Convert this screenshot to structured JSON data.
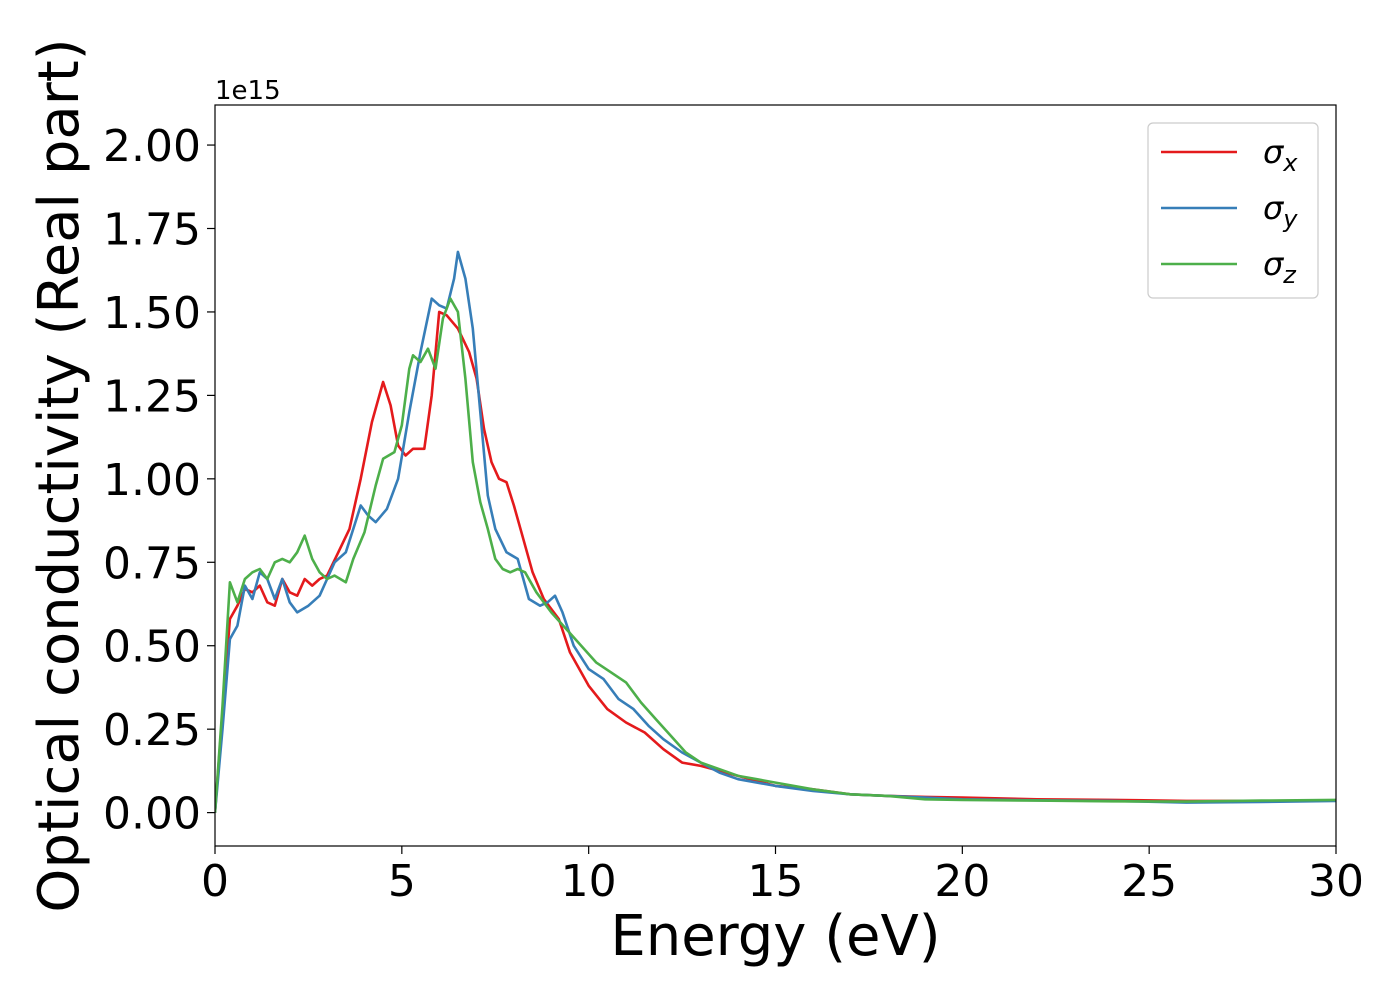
{
  "chart_data": {
    "type": "line",
    "xlabel": "Energy (eV)",
    "ylabel": "Optical conductivity (Real part)",
    "y_offset_text": "1e15",
    "xlim": [
      0,
      30
    ],
    "ylim": [
      -0.1,
      2.12
    ],
    "x_ticks": [
      0,
      5,
      10,
      15,
      20,
      25,
      30
    ],
    "x_tick_labels": [
      "0",
      "5",
      "10",
      "15",
      "20",
      "25",
      "30"
    ],
    "y_ticks": [
      0.0,
      0.25,
      0.5,
      0.75,
      1.0,
      1.25,
      1.5,
      1.75,
      2.0
    ],
    "y_tick_labels": [
      "0.00",
      "0.25",
      "0.50",
      "0.75",
      "1.00",
      "1.25",
      "1.50",
      "1.75",
      "2.00"
    ],
    "legend_position": "top-right",
    "grid": false,
    "series": [
      {
        "name": "σ",
        "subscript": "x",
        "color": "#e41a1c",
        "points": [
          [
            0,
            0
          ],
          [
            0.2,
            0.3
          ],
          [
            0.4,
            0.58
          ],
          [
            0.6,
            0.62
          ],
          [
            0.8,
            0.67
          ],
          [
            1.0,
            0.66
          ],
          [
            1.2,
            0.68
          ],
          [
            1.4,
            0.63
          ],
          [
            1.6,
            0.62
          ],
          [
            1.8,
            0.7
          ],
          [
            2.0,
            0.66
          ],
          [
            2.2,
            0.65
          ],
          [
            2.4,
            0.7
          ],
          [
            2.6,
            0.68
          ],
          [
            2.8,
            0.7
          ],
          [
            3.0,
            0.71
          ],
          [
            3.3,
            0.78
          ],
          [
            3.6,
            0.85
          ],
          [
            3.9,
            1.0
          ],
          [
            4.2,
            1.17
          ],
          [
            4.5,
            1.29
          ],
          [
            4.7,
            1.22
          ],
          [
            4.9,
            1.1
          ],
          [
            5.1,
            1.07
          ],
          [
            5.3,
            1.09
          ],
          [
            5.6,
            1.09
          ],
          [
            5.8,
            1.25
          ],
          [
            6.0,
            1.5
          ],
          [
            6.2,
            1.49
          ],
          [
            6.5,
            1.45
          ],
          [
            6.8,
            1.38
          ],
          [
            7.0,
            1.3
          ],
          [
            7.2,
            1.15
          ],
          [
            7.4,
            1.05
          ],
          [
            7.6,
            1.0
          ],
          [
            7.8,
            0.99
          ],
          [
            8.0,
            0.92
          ],
          [
            8.2,
            0.84
          ],
          [
            8.5,
            0.72
          ],
          [
            8.8,
            0.64
          ],
          [
            9.2,
            0.58
          ],
          [
            9.5,
            0.48
          ],
          [
            10.0,
            0.38
          ],
          [
            10.5,
            0.31
          ],
          [
            11.0,
            0.27
          ],
          [
            11.5,
            0.24
          ],
          [
            12.0,
            0.19
          ],
          [
            12.5,
            0.15
          ],
          [
            13.0,
            0.14
          ],
          [
            14.0,
            0.11
          ],
          [
            15.0,
            0.08
          ],
          [
            16.0,
            0.07
          ],
          [
            17.0,
            0.055
          ],
          [
            18.0,
            0.05
          ],
          [
            19.0,
            0.047
          ],
          [
            20.0,
            0.045
          ],
          [
            22.0,
            0.04
          ],
          [
            24.0,
            0.038
          ],
          [
            26.0,
            0.035
          ],
          [
            28.0,
            0.035
          ],
          [
            30.0,
            0.036
          ]
        ]
      },
      {
        "name": "σ",
        "subscript": "y",
        "color": "#377eb8",
        "points": [
          [
            0,
            0
          ],
          [
            0.2,
            0.25
          ],
          [
            0.4,
            0.52
          ],
          [
            0.6,
            0.56
          ],
          [
            0.8,
            0.68
          ],
          [
            1.0,
            0.64
          ],
          [
            1.2,
            0.72
          ],
          [
            1.4,
            0.7
          ],
          [
            1.6,
            0.64
          ],
          [
            1.8,
            0.7
          ],
          [
            2.0,
            0.63
          ],
          [
            2.2,
            0.6
          ],
          [
            2.5,
            0.62
          ],
          [
            2.8,
            0.65
          ],
          [
            3.0,
            0.7
          ],
          [
            3.2,
            0.75
          ],
          [
            3.5,
            0.78
          ],
          [
            3.7,
            0.85
          ],
          [
            3.9,
            0.92
          ],
          [
            4.1,
            0.89
          ],
          [
            4.3,
            0.87
          ],
          [
            4.6,
            0.91
          ],
          [
            4.9,
            1.0
          ],
          [
            5.2,
            1.2
          ],
          [
            5.5,
            1.38
          ],
          [
            5.8,
            1.54
          ],
          [
            6.0,
            1.52
          ],
          [
            6.2,
            1.51
          ],
          [
            6.4,
            1.6
          ],
          [
            6.5,
            1.68
          ],
          [
            6.7,
            1.6
          ],
          [
            6.9,
            1.45
          ],
          [
            7.1,
            1.2
          ],
          [
            7.3,
            0.95
          ],
          [
            7.5,
            0.85
          ],
          [
            7.8,
            0.78
          ],
          [
            8.1,
            0.76
          ],
          [
            8.4,
            0.64
          ],
          [
            8.7,
            0.62
          ],
          [
            8.9,
            0.63
          ],
          [
            9.1,
            0.65
          ],
          [
            9.3,
            0.6
          ],
          [
            9.6,
            0.5
          ],
          [
            10.0,
            0.43
          ],
          [
            10.4,
            0.4
          ],
          [
            10.8,
            0.34
          ],
          [
            11.2,
            0.31
          ],
          [
            11.6,
            0.26
          ],
          [
            12.0,
            0.22
          ],
          [
            12.5,
            0.18
          ],
          [
            13.0,
            0.15
          ],
          [
            13.5,
            0.12
          ],
          [
            14.0,
            0.1
          ],
          [
            15.0,
            0.08
          ],
          [
            16.0,
            0.065
          ],
          [
            17.0,
            0.055
          ],
          [
            18.0,
            0.05
          ],
          [
            19.0,
            0.045
          ],
          [
            20.0,
            0.04
          ],
          [
            22.0,
            0.037
          ],
          [
            24.0,
            0.035
          ],
          [
            26.0,
            0.03
          ],
          [
            28.0,
            0.032
          ],
          [
            30.0,
            0.035
          ]
        ]
      },
      {
        "name": "σ",
        "subscript": "z",
        "color": "#4daf4a",
        "points": [
          [
            0,
            0
          ],
          [
            0.2,
            0.32
          ],
          [
            0.4,
            0.69
          ],
          [
            0.6,
            0.63
          ],
          [
            0.8,
            0.7
          ],
          [
            1.0,
            0.72
          ],
          [
            1.2,
            0.73
          ],
          [
            1.4,
            0.7
          ],
          [
            1.6,
            0.75
          ],
          [
            1.8,
            0.76
          ],
          [
            2.0,
            0.75
          ],
          [
            2.2,
            0.78
          ],
          [
            2.4,
            0.83
          ],
          [
            2.6,
            0.76
          ],
          [
            2.8,
            0.72
          ],
          [
            3.0,
            0.7
          ],
          [
            3.2,
            0.71
          ],
          [
            3.5,
            0.69
          ],
          [
            3.7,
            0.76
          ],
          [
            4.0,
            0.84
          ],
          [
            4.3,
            0.98
          ],
          [
            4.5,
            1.06
          ],
          [
            4.8,
            1.08
          ],
          [
            5.0,
            1.16
          ],
          [
            5.2,
            1.33
          ],
          [
            5.3,
            1.37
          ],
          [
            5.5,
            1.35
          ],
          [
            5.7,
            1.39
          ],
          [
            5.9,
            1.33
          ],
          [
            6.1,
            1.48
          ],
          [
            6.3,
            1.54
          ],
          [
            6.5,
            1.5
          ],
          [
            6.7,
            1.3
          ],
          [
            6.9,
            1.05
          ],
          [
            7.1,
            0.93
          ],
          [
            7.3,
            0.85
          ],
          [
            7.5,
            0.76
          ],
          [
            7.7,
            0.73
          ],
          [
            7.9,
            0.72
          ],
          [
            8.1,
            0.73
          ],
          [
            8.3,
            0.72
          ],
          [
            8.6,
            0.66
          ],
          [
            9.0,
            0.6
          ],
          [
            9.4,
            0.55
          ],
          [
            9.8,
            0.5
          ],
          [
            10.2,
            0.45
          ],
          [
            10.6,
            0.42
          ],
          [
            11.0,
            0.39
          ],
          [
            11.4,
            0.33
          ],
          [
            11.8,
            0.28
          ],
          [
            12.2,
            0.23
          ],
          [
            12.6,
            0.18
          ],
          [
            13.0,
            0.15
          ],
          [
            13.5,
            0.13
          ],
          [
            14.0,
            0.11
          ],
          [
            14.5,
            0.1
          ],
          [
            15.0,
            0.09
          ],
          [
            16.0,
            0.07
          ],
          [
            17.0,
            0.055
          ],
          [
            18.0,
            0.05
          ],
          [
            19.0,
            0.04
          ],
          [
            20.0,
            0.038
          ],
          [
            22.0,
            0.036
          ],
          [
            24.0,
            0.034
          ],
          [
            26.0,
            0.033
          ],
          [
            28.0,
            0.036
          ],
          [
            30.0,
            0.038
          ]
        ]
      }
    ]
  }
}
